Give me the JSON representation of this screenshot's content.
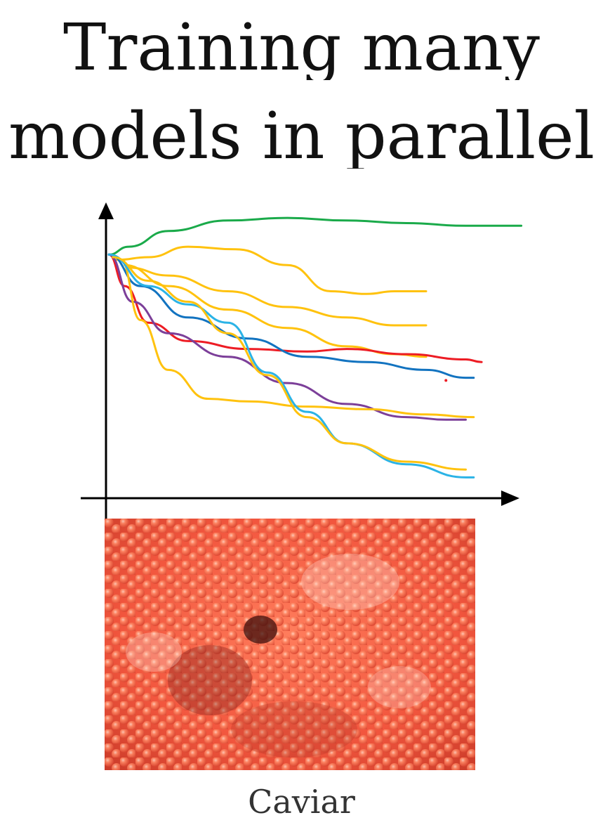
{
  "title": {
    "line1": "Training many",
    "line2": "models in parallel"
  },
  "caption": "Caviar",
  "photo": {
    "subject": "caviar-roe-photo",
    "base_color": "#f0553d"
  },
  "chart_data": {
    "type": "line",
    "title": "Training many models in parallel",
    "xlabel": "",
    "ylabel": "",
    "xlim": [
      0,
      100
    ],
    "ylim": [
      0,
      100
    ],
    "grid": false,
    "legend": "none",
    "axis_arrows": true,
    "series": [
      {
        "color": "#1aaa4a",
        "points": [
          [
            0,
            90
          ],
          [
            5,
            93
          ],
          [
            15,
            99
          ],
          [
            30,
            103
          ],
          [
            45,
            104
          ],
          [
            60,
            103
          ],
          [
            75,
            102
          ],
          [
            90,
            101
          ],
          [
            104,
            101
          ]
        ]
      },
      {
        "color": "#ffc20e",
        "points": [
          [
            2,
            88
          ],
          [
            10,
            89
          ],
          [
            20,
            93
          ],
          [
            32,
            92
          ],
          [
            45,
            86
          ],
          [
            56,
            76
          ],
          [
            65,
            75
          ],
          [
            72,
            76
          ],
          [
            80,
            76
          ]
        ]
      },
      {
        "color": "#ffc20e",
        "points": [
          [
            5,
            85
          ],
          [
            15,
            82
          ],
          [
            30,
            76
          ],
          [
            45,
            70
          ],
          [
            60,
            66
          ],
          [
            72,
            63
          ],
          [
            80,
            63
          ]
        ]
      },
      {
        "color": "#ffc20e",
        "points": [
          [
            4,
            86
          ],
          [
            15,
            78
          ],
          [
            30,
            69
          ],
          [
            45,
            62
          ],
          [
            60,
            55
          ],
          [
            72,
            52
          ],
          [
            80,
            51
          ]
        ]
      },
      {
        "color": "#ed1c24",
        "points": [
          [
            0,
            90
          ],
          [
            4,
            78
          ],
          [
            10,
            64
          ],
          [
            20,
            57
          ],
          [
            35,
            54
          ],
          [
            50,
            53
          ],
          [
            60,
            54
          ],
          [
            75,
            52
          ],
          [
            90,
            50
          ],
          [
            94,
            49
          ]
        ]
      },
      {
        "color": "#1273c0",
        "points": [
          [
            0,
            90
          ],
          [
            8,
            78
          ],
          [
            20,
            66
          ],
          [
            35,
            58
          ],
          [
            50,
            51
          ],
          [
            65,
            49
          ],
          [
            80,
            46
          ],
          [
            90,
            43
          ],
          [
            92,
            43
          ]
        ]
      },
      {
        "color": "#7c3f99",
        "points": [
          [
            0,
            90
          ],
          [
            6,
            72
          ],
          [
            15,
            60
          ],
          [
            30,
            51
          ],
          [
            45,
            41
          ],
          [
            60,
            33
          ],
          [
            75,
            28
          ],
          [
            85,
            27
          ],
          [
            90,
            27
          ]
        ]
      },
      {
        "color": "#ffc20e",
        "points": [
          [
            3,
            88
          ],
          [
            8,
            65
          ],
          [
            15,
            46
          ],
          [
            25,
            35
          ],
          [
            35,
            34
          ],
          [
            50,
            32
          ],
          [
            65,
            31
          ],
          [
            80,
            29
          ],
          [
            92,
            28
          ]
        ]
      },
      {
        "color": "#2bb3e6",
        "points": [
          [
            0,
            90
          ],
          [
            10,
            78
          ],
          [
            20,
            71
          ],
          [
            30,
            64
          ],
          [
            40,
            45
          ],
          [
            50,
            30
          ],
          [
            60,
            18
          ],
          [
            75,
            10
          ],
          [
            90,
            5
          ],
          [
            92,
            5
          ]
        ]
      },
      {
        "color": "#ffc20e",
        "points": [
          [
            1,
            89
          ],
          [
            10,
            80
          ],
          [
            20,
            72
          ],
          [
            30,
            60
          ],
          [
            40,
            44
          ],
          [
            50,
            28
          ],
          [
            60,
            18
          ],
          [
            75,
            11
          ],
          [
            90,
            8
          ]
        ]
      }
    ]
  }
}
